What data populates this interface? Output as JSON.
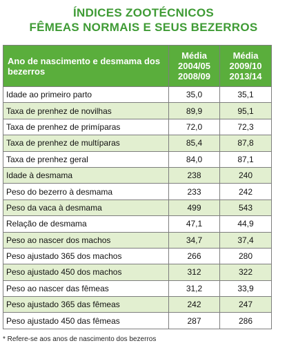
{
  "title": {
    "line1": "ÍNDICES ZOOTÉCNICOS",
    "line2": "FÊMEAS NORMAIS E SEUS BEZERROS"
  },
  "table": {
    "header": {
      "label": "Ano de nascimento e desmama dos bezerros",
      "col1": [
        "Média",
        "2004/05",
        "2008/09"
      ],
      "col2": [
        "Média",
        "2009/10",
        "2013/14"
      ]
    },
    "rows": [
      {
        "label": "Idade ao primeiro parto",
        "v1": "35,0",
        "v2": "35,1"
      },
      {
        "label": "Taxa de prenhez de novilhas",
        "v1": "89,9",
        "v2": "95,1"
      },
      {
        "label": "Taxa de prenhez de primíparas",
        "v1": "72,0",
        "v2": "72,3"
      },
      {
        "label": "Taxa de prenhez de multíparas",
        "v1": "85,4",
        "v2": "87,8"
      },
      {
        "label": "Taxa de prenhez geral",
        "v1": "84,0",
        "v2": "87,1"
      },
      {
        "label": "Idade à desmama",
        "v1": "238",
        "v2": "240"
      },
      {
        "label": "Peso do bezerro à desmama",
        "v1": "233",
        "v2": "242"
      },
      {
        "label": "Peso da vaca à desmama",
        "v1": "499",
        "v2": "543"
      },
      {
        "label": "Relação de desmama",
        "v1": "47,1",
        "v2": "44,9"
      },
      {
        "label": "Peso ao nascer dos machos",
        "v1": "34,7",
        "v2": "37,4"
      },
      {
        "label": "Peso ajustado 365 dos machos",
        "v1": "266",
        "v2": "280"
      },
      {
        "label": "Peso ajustado 450 dos machos",
        "v1": "312",
        "v2": "322"
      },
      {
        "label": "Peso ao nascer das fêmeas",
        "v1": "31,2",
        "v2": "33,9"
      },
      {
        "label": "Peso ajustado 365 das fêmeas",
        "v1": "242",
        "v2": "247"
      },
      {
        "label": "Peso ajustado 450 das fêmeas",
        "v1": "287",
        "v2": "286"
      }
    ]
  },
  "footnote": "* Refere-se aos anos de nascimento dos bezerros",
  "colors": {
    "title_green": "#3f9b35",
    "header_green": "#5aae3c",
    "row_alt_green": "#e2efd0"
  }
}
